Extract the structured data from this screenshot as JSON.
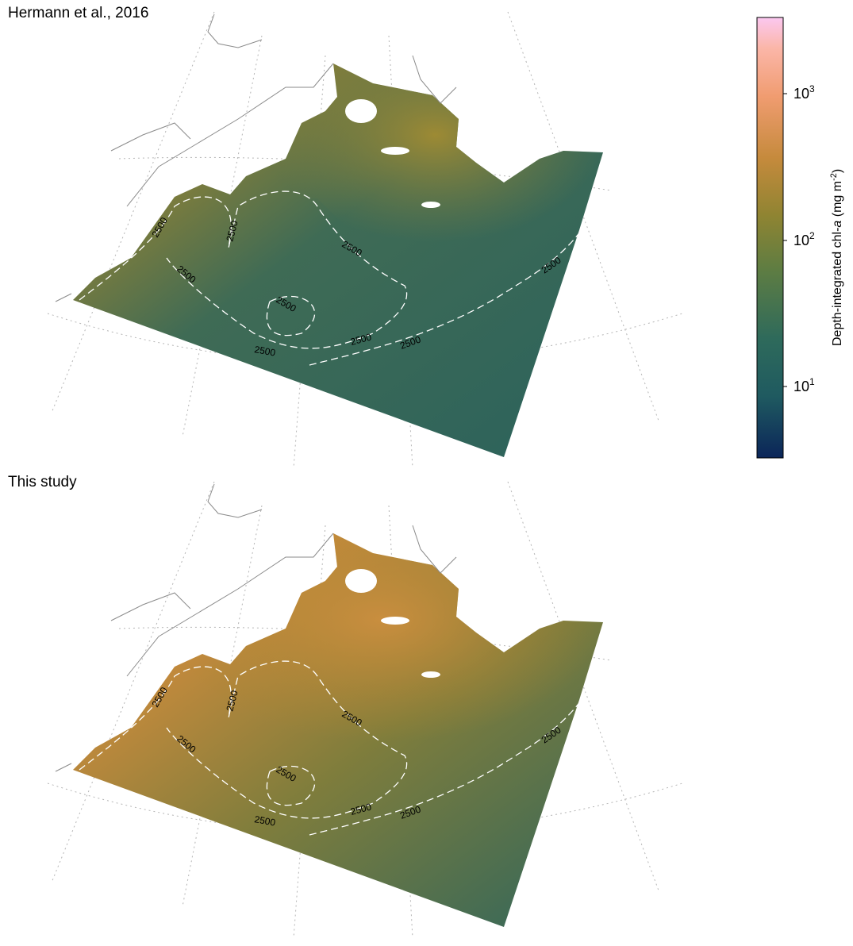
{
  "panels": [
    {
      "id": "top",
      "title": "Hermann et al., 2016",
      "contour_label": "2500"
    },
    {
      "id": "bottom",
      "title": "This study",
      "contour_label": "2500"
    }
  ],
  "colorbar": {
    "title_prefix": "Depth-integrated chl-",
    "title_italic": "a",
    "title_suffix": " (mg m",
    "title_exp": "-2",
    "title_close": ")",
    "scale": "log",
    "range": [
      3,
      3000
    ],
    "ticks": [
      {
        "base": "10",
        "exp": "1",
        "value": 10
      },
      {
        "base": "10",
        "exp": "2",
        "value": 100
      },
      {
        "base": "10",
        "exp": "3",
        "value": 1000
      }
    ],
    "colors": [
      "#0b2559",
      "#1f5a60",
      "#2e6a5b",
      "#5f7d42",
      "#8f8432",
      "#c58a3c",
      "#f09c70",
      "#fbb6a8",
      "#fbc8f0"
    ]
  },
  "contour_depth_m": 2500,
  "colors": {
    "coast": "#8a8a8a",
    "graticule": "#b5b5b5",
    "contour": "#ffffff"
  }
}
